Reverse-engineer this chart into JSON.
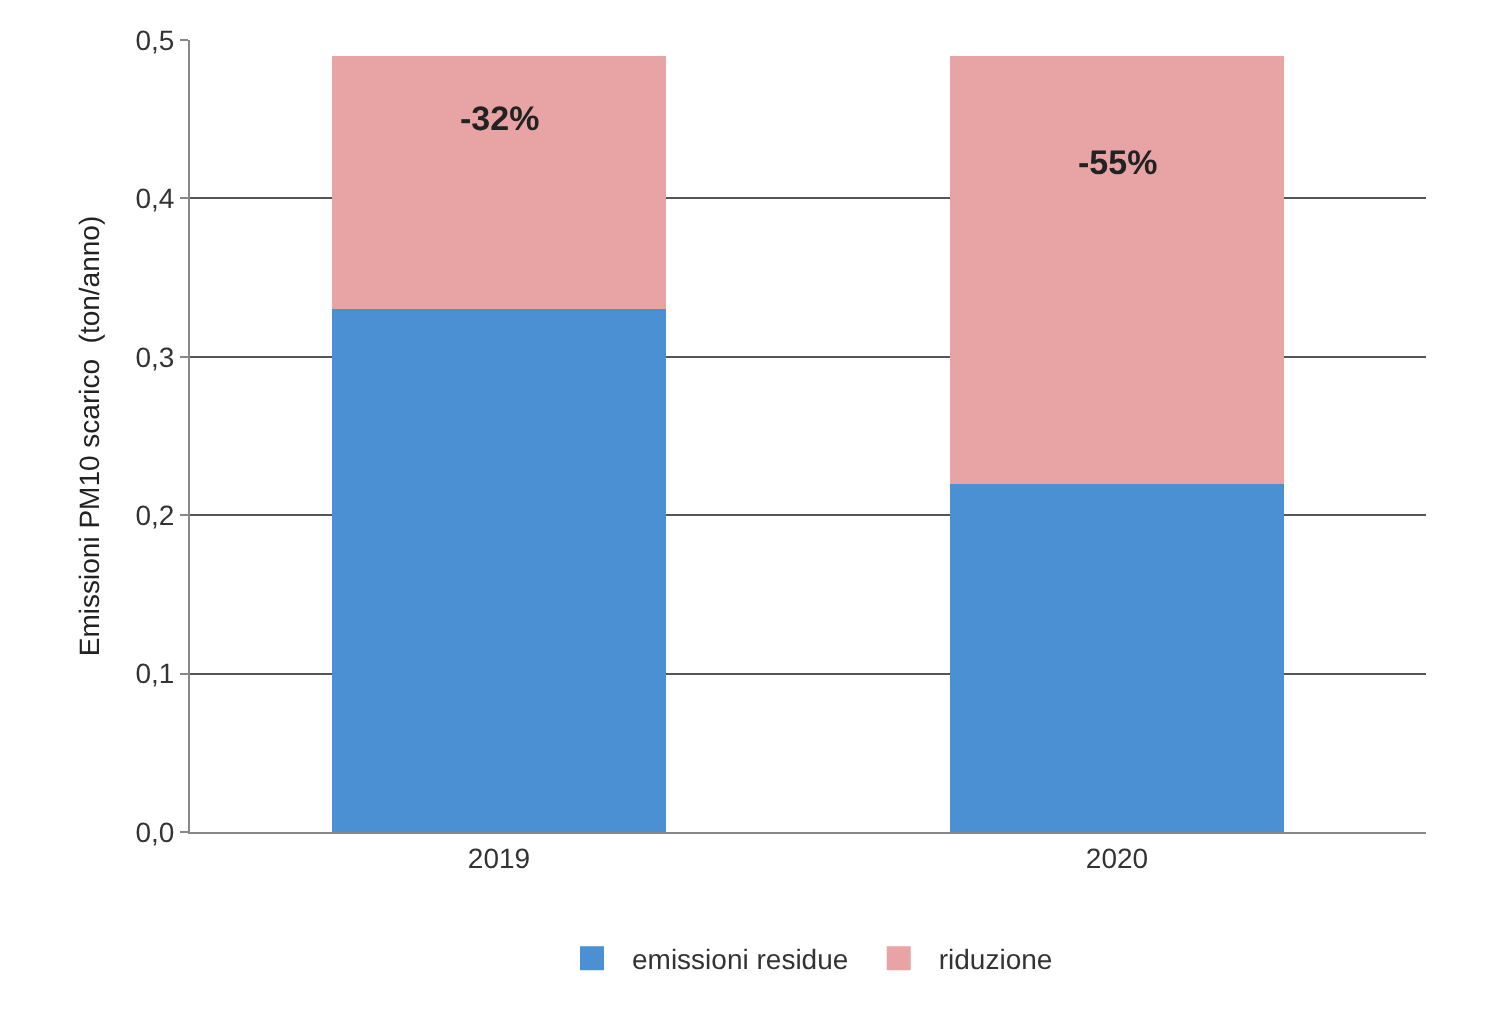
{
  "chart_data": {
    "type": "bar",
    "stacked": true,
    "ylabel": "Emissioni PM10 scarico  (ton/anno)",
    "categories": [
      "2019",
      "2020"
    ],
    "series": [
      {
        "name": "emissioni residue",
        "color": "#4a90d2",
        "values": [
          0.33,
          0.22
        ]
      },
      {
        "name": "riduzione",
        "color": "#e8a4a4",
        "values": [
          0.16,
          0.27
        ]
      }
    ],
    "ylim": [
      0,
      0.5
    ],
    "yticks": [
      {
        "value": 0,
        "label": "0,0"
      },
      {
        "value": 0.1,
        "label": "0,1"
      },
      {
        "value": 0.2,
        "label": "0,2"
      },
      {
        "value": 0.3,
        "label": "0,3"
      },
      {
        "value": 0.4,
        "label": "0,4"
      },
      {
        "value": 0.5,
        "label": "0,5"
      }
    ],
    "grid": "y",
    "legend": "bottom",
    "annotations": [
      "-32%",
      "-55%"
    ]
  }
}
